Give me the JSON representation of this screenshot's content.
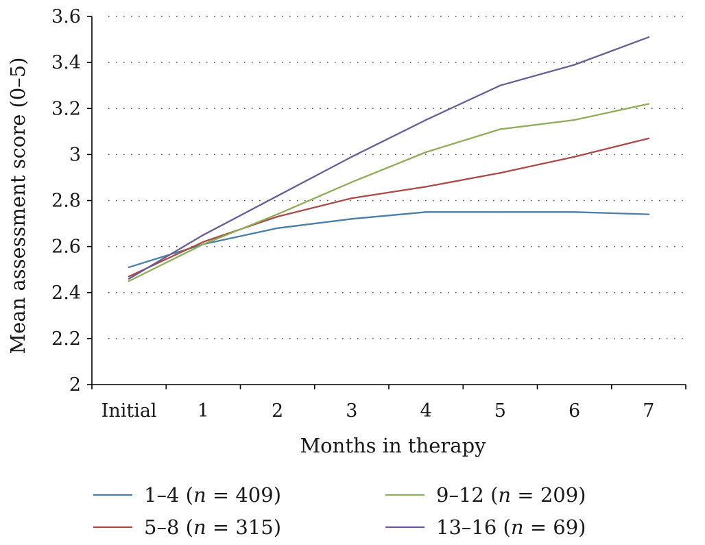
{
  "chart_data": {
    "type": "line",
    "xlabel": "Months in therapy",
    "ylabel": "Mean assessment score (0–5)",
    "categories": [
      "Initial",
      "1",
      "2",
      "3",
      "4",
      "5",
      "6",
      "7"
    ],
    "ylim": [
      2,
      3.6
    ],
    "yticks": [
      2,
      2.2,
      2.4,
      2.6,
      2.8,
      3,
      3.2,
      3.4,
      3.6
    ],
    "ytick_labels": [
      "2",
      "2.2",
      "2.4",
      "2.6",
      "2.8",
      "3",
      "3.2",
      "3.4",
      "3.6"
    ],
    "grid": "horizontal dotted",
    "legend_position": "bottom",
    "series": [
      {
        "name": "1–4",
        "n_label": "n",
        "n_value": "409",
        "color": "#4a7fa5",
        "values": [
          2.51,
          2.61,
          2.68,
          2.72,
          2.75,
          2.75,
          2.75,
          2.74
        ]
      },
      {
        "name": "5–8",
        "n_label": "n",
        "n_value": "315",
        "color": "#a94a47",
        "values": [
          2.47,
          2.62,
          2.73,
          2.81,
          2.86,
          2.92,
          2.99,
          3.07
        ]
      },
      {
        "name": "9–12",
        "n_label": "n",
        "n_value": "209",
        "color": "#8fac5a",
        "values": [
          2.45,
          2.61,
          2.74,
          2.88,
          3.01,
          3.11,
          3.15,
          3.22
        ]
      },
      {
        "name": "13–16",
        "n_label": "n",
        "n_value": "69",
        "color": "#6a5d96",
        "values": [
          2.46,
          2.65,
          2.82,
          2.99,
          3.15,
          3.3,
          3.39,
          3.51
        ]
      }
    ]
  }
}
